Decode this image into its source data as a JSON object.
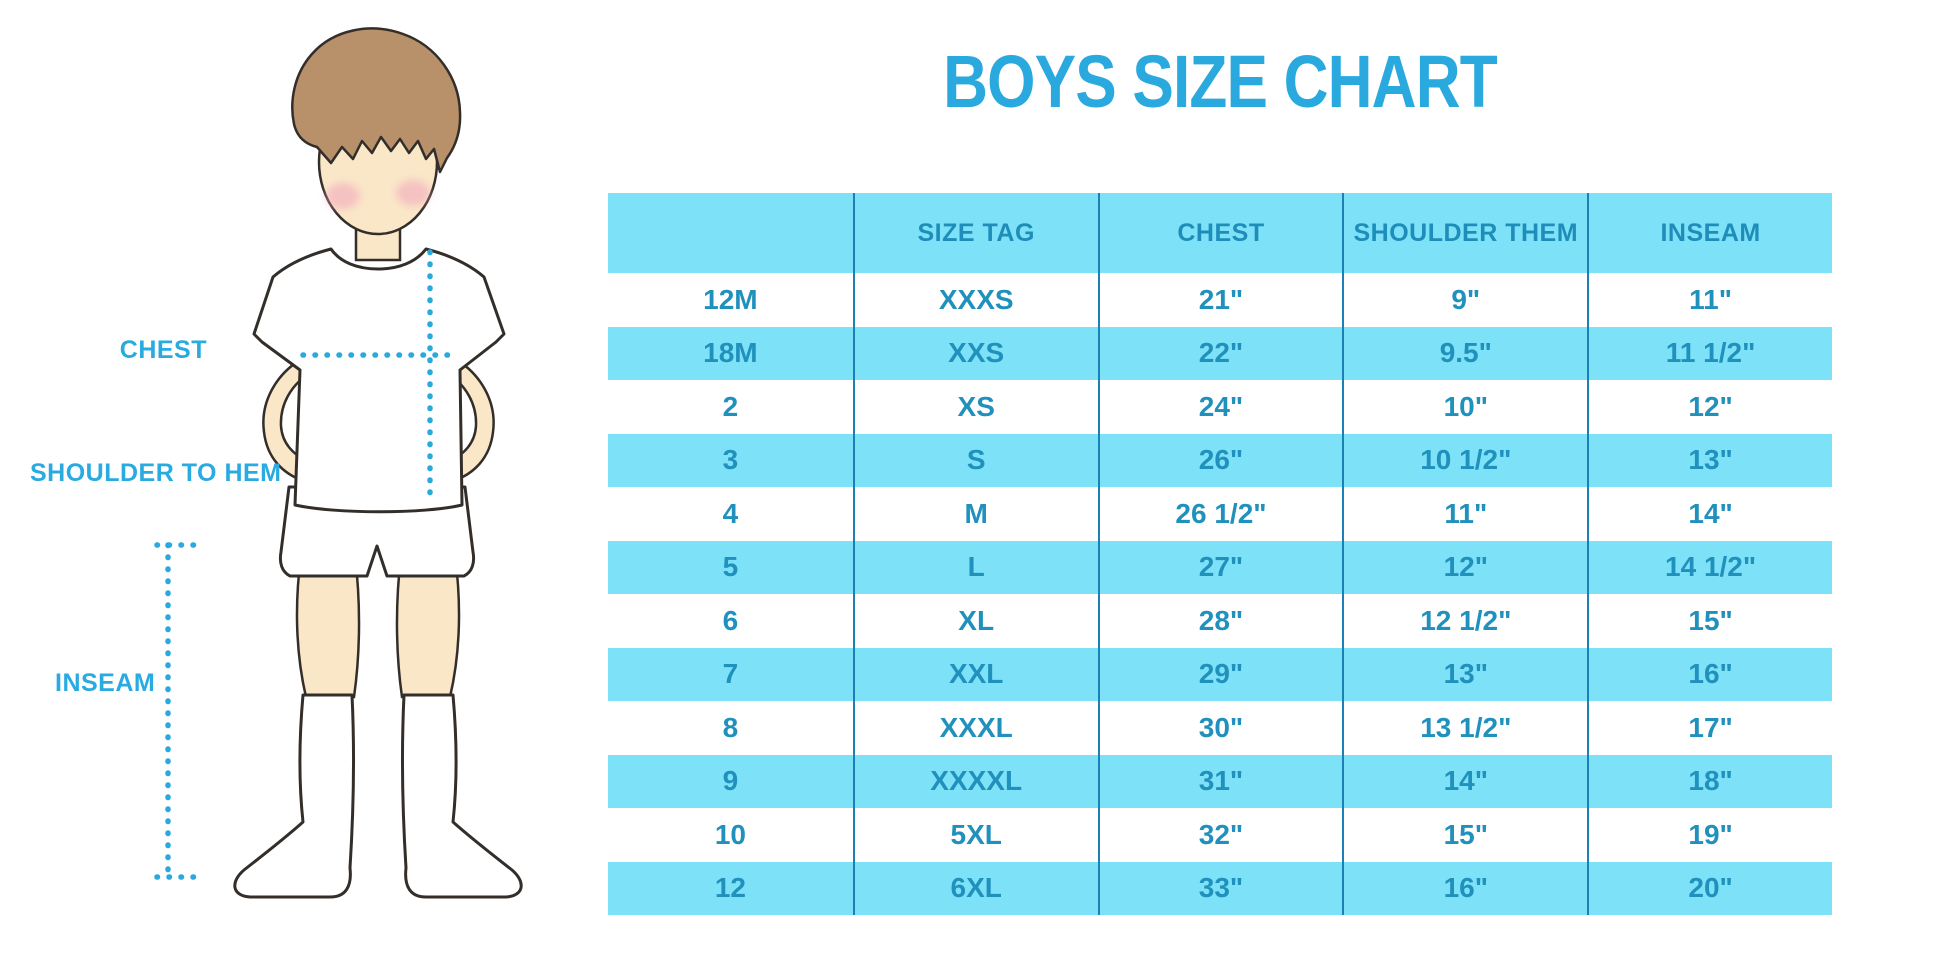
{
  "title": "BOYS SIZE CHART",
  "figure_labels": {
    "chest": "CHEST",
    "shoulder_to_hem": "SHOULDER TO HEM",
    "inseam": "INSEAM"
  },
  "chart_data": {
    "type": "table",
    "title": "BOYS SIZE CHART",
    "columns": [
      "",
      "SIZE TAG",
      "CHEST",
      "SHOULDER THEM",
      "INSEAM"
    ],
    "rows": [
      [
        "12M",
        "XXXS",
        "21\"",
        "9\"",
        "11\""
      ],
      [
        "18M",
        "XXS",
        "22\"",
        "9.5\"",
        "11 1/2\""
      ],
      [
        "2",
        "XS",
        "24\"",
        "10\"",
        "12\""
      ],
      [
        "3",
        "S",
        "26\"",
        "10 1/2\"",
        "13\""
      ],
      [
        "4",
        "M",
        "26 1/2\"",
        "11\"",
        "14\""
      ],
      [
        "5",
        "L",
        "27\"",
        "12\"",
        "14 1/2\""
      ],
      [
        "6",
        "XL",
        "28\"",
        "12 1/2\"",
        "15\""
      ],
      [
        "7",
        "XXL",
        "29\"",
        "13\"",
        "16\""
      ],
      [
        "8",
        "XXXL",
        "30\"",
        "13 1/2\"",
        "17\""
      ],
      [
        "9",
        "XXXXL",
        "31\"",
        "14\"",
        "18\""
      ],
      [
        "10",
        "5XL",
        "32\"",
        "15\"",
        "19\""
      ],
      [
        "12",
        "6XL",
        "33\"",
        "16\"",
        "20\""
      ]
    ],
    "row_stripe_pattern": "white / light-cyan alternating, header cyan",
    "legend_position": "none",
    "grid": "vertical column dividers only"
  },
  "colors": {
    "accent_azure": "#29A9DE",
    "table_fill_cyan": "#7DE2F8",
    "table_text_teal": "#2090BC",
    "column_divider": "#1B81B4",
    "skin": "#FAE7C8",
    "hair": "#B8906A",
    "blush": "#F2A9BE",
    "outline": "#332E29"
  }
}
